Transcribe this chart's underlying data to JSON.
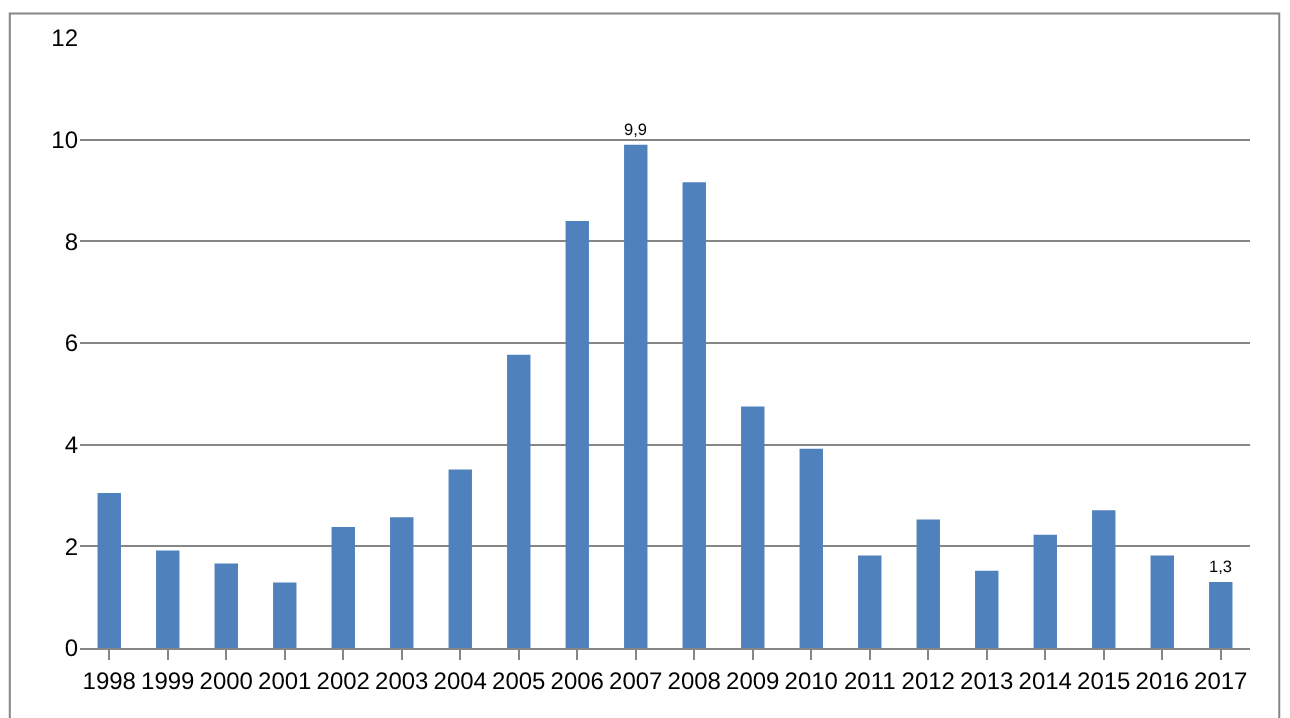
{
  "chart_data": {
    "type": "bar",
    "categories": [
      "1998",
      "1999",
      "2000",
      "2001",
      "2002",
      "2003",
      "2004",
      "2005",
      "2006",
      "2007",
      "2008",
      "2009",
      "2010",
      "2011",
      "2012",
      "2013",
      "2014",
      "2015",
      "2016",
      "2017"
    ],
    "values": [
      3.05,
      1.92,
      1.66,
      1.29,
      2.38,
      2.57,
      3.51,
      5.77,
      8.4,
      9.9,
      9.16,
      4.75,
      3.92,
      1.82,
      2.53,
      1.52,
      2.23,
      2.71,
      1.82,
      1.3
    ],
    "value_labels": [
      null,
      null,
      null,
      null,
      null,
      null,
      null,
      null,
      null,
      "9,9",
      null,
      null,
      null,
      null,
      null,
      null,
      null,
      null,
      null,
      "1,3"
    ],
    "color": "#4f81bd",
    "ylim": [
      0,
      12
    ],
    "yticks": [
      0,
      2,
      4,
      6,
      8,
      10,
      12
    ],
    "grid": "y",
    "legend": false
  }
}
